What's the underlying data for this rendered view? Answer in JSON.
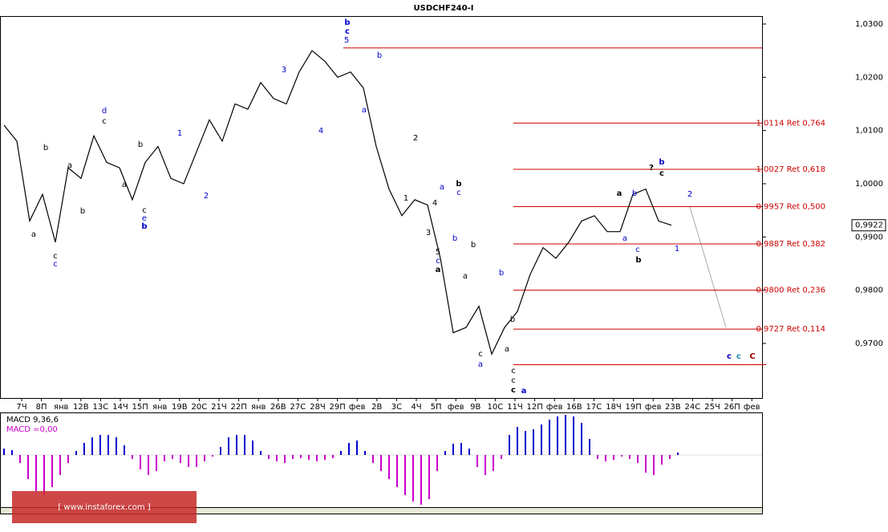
{
  "chart_data": {
    "type": "line",
    "title": "USDCHF240-I",
    "categories": [
      "7Ч",
      "8П",
      "янв",
      "12В",
      "13С",
      "14Ч",
      "15П",
      "янв",
      "19В",
      "20С",
      "21Ч",
      "22П",
      "янв",
      "26В",
      "27С",
      "28Ч",
      "29П",
      "фев",
      "2В",
      "3С",
      "4Ч",
      "5П",
      "фев",
      "9В",
      "10С",
      "11Ч",
      "12П",
      "фев",
      "16В",
      "17С",
      "18Ч",
      "19П",
      "фев",
      "23В",
      "24С",
      "25Ч",
      "26П",
      "фев"
    ],
    "price": {
      "color": "#000000",
      "values": [
        1.011,
        1.008,
        0.993,
        0.998,
        0.989,
        1.003,
        1.001,
        1.009,
        1.004,
        1.003,
        0.997,
        1.004,
        1.007,
        1.001,
        1.0,
        1.006,
        1.012,
        1.008,
        1.015,
        1.014,
        1.019,
        1.016,
        1.015,
        1.021,
        1.025,
        1.023,
        1.02,
        1.021,
        1.018,
        1.007,
        0.999,
        0.994,
        0.997,
        0.996,
        0.986,
        0.972,
        0.973,
        0.977,
        0.968,
        0.973,
        0.976,
        0.983,
        0.988,
        0.986,
        0.989,
        0.993,
        0.994,
        0.991,
        0.991,
        0.998,
        0.999,
        0.993,
        0.9922
      ]
    },
    "ylim": [
      0.9599,
      1.0315
    ],
    "yticks": [
      {
        "value": 1.03,
        "label": "1,0300"
      },
      {
        "value": 1.02,
        "label": "1,0200"
      },
      {
        "value": 1.01,
        "label": "1,0100"
      },
      {
        "value": 1.0,
        "label": "1,0000"
      },
      {
        "value": 0.99,
        "label": "0,9900"
      },
      {
        "value": 0.98,
        "label": "0,9800"
      },
      {
        "value": 0.97,
        "label": "0,9700"
      }
    ],
    "current_price": {
      "value": 0.9922,
      "label": "0,9922"
    },
    "levels": [
      {
        "value": 1.0114,
        "label": "1,0114 Ret 0,764"
      },
      {
        "value": 1.0027,
        "label": "1,0027 Ret 0,618"
      },
      {
        "value": 0.9957,
        "label": "0,9957 Ret 0,500"
      },
      {
        "value": 0.9887,
        "label": "0,9887 Ret 0,382"
      },
      {
        "value": 0.98,
        "label": "0,9800 Ret 0,236"
      },
      {
        "value": 0.9727,
        "label": "0,9727 Ret 0,114"
      }
    ],
    "extra_levels": [
      1.0255,
      0.966
    ],
    "level_color": "#cc0000",
    "annotations": [
      {
        "text": "b",
        "color": "#0000cc"
      },
      {
        "text": "c",
        "color": "#0000cc"
      },
      {
        "text": "5",
        "color": "#0000cc"
      },
      {
        "text": "b",
        "color": "#0000cc"
      },
      {
        "text": "a",
        "color": "#0000cc"
      },
      {
        "text": "3",
        "color": "#0000cc"
      },
      {
        "text": "4",
        "color": "#0000cc"
      },
      {
        "text": "1",
        "color": "#0000cc"
      },
      {
        "text": "2",
        "color": "#0000cc"
      },
      {
        "text": "d",
        "color": "#0000cc"
      },
      {
        "text": "c",
        "color": "#000000"
      },
      {
        "text": "b",
        "color": "#000000"
      },
      {
        "text": "a",
        "color": "#000000"
      },
      {
        "text": "b",
        "color": "#000000"
      },
      {
        "text": "a",
        "color": "#000000"
      },
      {
        "text": "c",
        "color": "#000000"
      },
      {
        "text": "c",
        "color": "#0000cc"
      },
      {
        "text": "b",
        "color": "#000000"
      },
      {
        "text": "a",
        "color": "#000000"
      },
      {
        "text": "c",
        "color": "#000000"
      },
      {
        "text": "e",
        "color": "#0000cc"
      },
      {
        "text": "b",
        "color": "#0000cc"
      },
      {
        "text": "2",
        "color": "#000000"
      },
      {
        "text": "1",
        "color": "#000000"
      },
      {
        "text": "4",
        "color": "#000000"
      },
      {
        "text": "3",
        "color": "#000000"
      },
      {
        "text": "5",
        "color": "#000000"
      },
      {
        "text": "c",
        "color": "#0000cc"
      },
      {
        "text": "a",
        "color": "#000000"
      },
      {
        "text": "b",
        "color": "#000000"
      },
      {
        "text": "c",
        "color": "#0000cc"
      },
      {
        "text": "a",
        "color": "#0000cc"
      },
      {
        "text": "b",
        "color": "#0000cc"
      },
      {
        "text": "b",
        "color": "#000000"
      },
      {
        "text": "a",
        "color": "#000000"
      },
      {
        "text": "b",
        "color": "#0000cc"
      },
      {
        "text": "b",
        "color": "#000000"
      },
      {
        "text": "a",
        "color": "#000000"
      },
      {
        "text": "c",
        "color": "#000000"
      },
      {
        "text": "a",
        "color": "#0000cc"
      },
      {
        "text": "c",
        "color": "#000000"
      },
      {
        "text": "c",
        "color": "#000000"
      },
      {
        "text": "c",
        "color": "#000000"
      },
      {
        "text": "a",
        "color": "#0000cc"
      },
      {
        "text": "a",
        "color": "#000000"
      },
      {
        "text": "b",
        "color": "#0000cc"
      },
      {
        "text": "a",
        "color": "#0000cc"
      },
      {
        "text": "c",
        "color": "#0000cc"
      },
      {
        "text": "b",
        "color": "#000000"
      },
      {
        "text": "?",
        "color": "#000000"
      },
      {
        "text": "b",
        "color": "#0000cc"
      },
      {
        "text": "c",
        "color": "#000000"
      },
      {
        "text": "2",
        "color": "#0000cc"
      },
      {
        "text": "1",
        "color": "#0000cc"
      },
      {
        "text": "c",
        "color": "#0000cc"
      },
      {
        "text": "c",
        "color": "#1a8ab5"
      },
      {
        "text": "C",
        "color": "#990000"
      }
    ],
    "macd": {
      "label": "MACD 9,36,6",
      "value_label": "MACD =0,00",
      "positive_color": "#0000cc",
      "negative_color": "#cc00cc",
      "ylim": [
        -65,
        52
      ],
      "values": [
        8,
        6,
        -10,
        -30,
        -45,
        -50,
        -40,
        -25,
        -10,
        5,
        15,
        22,
        25,
        25,
        22,
        12,
        -5,
        -18,
        -25,
        -20,
        -8,
        -5,
        -10,
        -15,
        -15,
        -8,
        -2,
        10,
        22,
        25,
        25,
        18,
        5,
        -5,
        -8,
        -10,
        -5,
        -4,
        -6,
        -8,
        -6,
        -4,
        5,
        15,
        18,
        5,
        -10,
        -20,
        -30,
        -40,
        -50,
        -58,
        -62,
        -55,
        -20,
        5,
        14,
        15,
        8,
        -15,
        -25,
        -20,
        -5,
        25,
        35,
        30,
        32,
        38,
        44,
        48,
        50,
        48,
        40,
        20,
        -5,
        -8,
        -6,
        -2,
        -5,
        -10,
        -22,
        -25,
        -12,
        -5,
        3
      ]
    },
    "watermark": "[ www.instaforex.com ]"
  }
}
